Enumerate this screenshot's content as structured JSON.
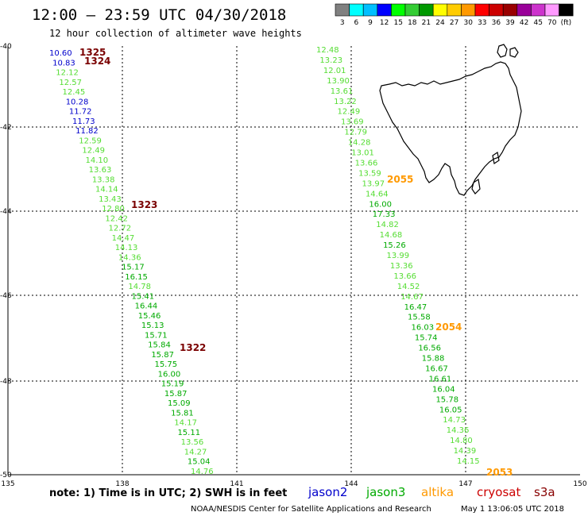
{
  "header": {
    "title": "12:00 — 23:59 UTC 04/30/2018",
    "subtitle": "12 hour collection of altimeter wave heights"
  },
  "legend": {
    "values": [
      "3",
      "6",
      "9",
      "12",
      "15",
      "18",
      "21",
      "24",
      "27",
      "30",
      "33",
      "36",
      "39",
      "42",
      "45",
      "70",
      "(ft)"
    ],
    "colors": [
      "#808080",
      "#00ffff",
      "#00bfff",
      "#0000ff",
      "#00ff00",
      "#33cc33",
      "#009900",
      "#ffff00",
      "#ffcc00",
      "#ff9900",
      "#ff0000",
      "#cc0000",
      "#990000",
      "#990099",
      "#cc33cc",
      "#ff99ff",
      "#000000"
    ]
  },
  "axes": {
    "lon_ticks": [
      "135",
      "138",
      "141",
      "144",
      "147",
      "150"
    ],
    "lat_ticks": [
      "-40",
      "-42",
      "-44",
      "-46",
      "-48",
      "-50"
    ]
  },
  "colors": {
    "jason2": "#0000cc",
    "jason3": "#00aa00",
    "light_green": "#55dd33",
    "altika": "#ff9900",
    "cryosat": "#cc0000",
    "s3a": "#880000",
    "time_dark": "#7a0000",
    "time_orange": "#ff9900"
  },
  "track_west": {
    "labels": [
      {
        "v": "10.60",
        "c": "jason2"
      },
      {
        "v": "10.83",
        "c": "jason2"
      },
      {
        "v": "12.12",
        "c": "light_green"
      },
      {
        "v": "12.57",
        "c": "light_green"
      },
      {
        "v": "12.45",
        "c": "light_green"
      },
      {
        "v": "10.28",
        "c": "jason2"
      },
      {
        "v": "11.72",
        "c": "jason2"
      },
      {
        "v": "11.73",
        "c": "jason2"
      },
      {
        "v": "11.82",
        "c": "jason2"
      },
      {
        "v": "12.59",
        "c": "light_green"
      },
      {
        "v": "12.49",
        "c": "light_green"
      },
      {
        "v": "14.10",
        "c": "light_green"
      },
      {
        "v": "13.63",
        "c": "light_green"
      },
      {
        "v": "13.38",
        "c": "light_green"
      },
      {
        "v": "14.14",
        "c": "light_green"
      },
      {
        "v": "13.43",
        "c": "light_green"
      },
      {
        "v": "12.80",
        "c": "light_green"
      },
      {
        "v": "12.42",
        "c": "light_green"
      },
      {
        "v": "12.72",
        "c": "light_green"
      },
      {
        "v": "14.47",
        "c": "light_green"
      },
      {
        "v": "14.13",
        "c": "light_green"
      },
      {
        "v": "14.36",
        "c": "light_green"
      },
      {
        "v": "15.17",
        "c": "jason3"
      },
      {
        "v": "16.15",
        "c": "jason3"
      },
      {
        "v": "14.78",
        "c": "light_green"
      },
      {
        "v": "15.41",
        "c": "jason3"
      },
      {
        "v": "16.44",
        "c": "jason3"
      },
      {
        "v": "15.46",
        "c": "jason3"
      },
      {
        "v": "15.13",
        "c": "jason3"
      },
      {
        "v": "15.71",
        "c": "jason3"
      },
      {
        "v": "15.84",
        "c": "jason3"
      },
      {
        "v": "15.87",
        "c": "jason3"
      },
      {
        "v": "15.75",
        "c": "jason3"
      },
      {
        "v": "16.00",
        "c": "jason3"
      },
      {
        "v": "15.19",
        "c": "jason3"
      },
      {
        "v": "15.87",
        "c": "jason3"
      },
      {
        "v": "15.09",
        "c": "jason3"
      },
      {
        "v": "15.81",
        "c": "jason3"
      },
      {
        "v": "14.17",
        "c": "light_green"
      },
      {
        "v": "15.11",
        "c": "jason3"
      },
      {
        "v": "13.56",
        "c": "light_green"
      },
      {
        "v": "14.27",
        "c": "light_green"
      },
      {
        "v": "15.04",
        "c": "jason3"
      },
      {
        "v": "14.76",
        "c": "light_green"
      }
    ],
    "times": [
      {
        "t": "1325",
        "c": "time_dark"
      },
      {
        "t": "1324",
        "c": "time_dark"
      },
      {
        "t": "1323",
        "c": "time_dark"
      },
      {
        "t": "1322",
        "c": "time_dark"
      }
    ]
  },
  "track_east": {
    "labels": [
      {
        "v": "12.48",
        "c": "light_green"
      },
      {
        "v": "13.23",
        "c": "light_green"
      },
      {
        "v": "12.01",
        "c": "light_green"
      },
      {
        "v": "13.90",
        "c": "light_green"
      },
      {
        "v": "13.61",
        "c": "light_green"
      },
      {
        "v": "13.22",
        "c": "light_green"
      },
      {
        "v": "12.49",
        "c": "light_green"
      },
      {
        "v": "13.69",
        "c": "light_green"
      },
      {
        "v": "12.79",
        "c": "light_green"
      },
      {
        "v": "14.28",
        "c": "light_green"
      },
      {
        "v": "13.01",
        "c": "light_green"
      },
      {
        "v": "13.66",
        "c": "light_green"
      },
      {
        "v": "13.59",
        "c": "light_green"
      },
      {
        "v": "13.97",
        "c": "light_green"
      },
      {
        "v": "14.64",
        "c": "light_green"
      },
      {
        "v": "16.00",
        "c": "jason3"
      },
      {
        "v": "17.33",
        "c": "jason3"
      },
      {
        "v": "14.82",
        "c": "light_green"
      },
      {
        "v": "14.68",
        "c": "light_green"
      },
      {
        "v": "15.26",
        "c": "jason3"
      },
      {
        "v": "13.99",
        "c": "light_green"
      },
      {
        "v": "13.36",
        "c": "light_green"
      },
      {
        "v": "13.66",
        "c": "light_green"
      },
      {
        "v": "14.52",
        "c": "light_green"
      },
      {
        "v": "14.67",
        "c": "light_green"
      },
      {
        "v": "16.47",
        "c": "jason3"
      },
      {
        "v": "15.58",
        "c": "jason3"
      },
      {
        "v": "16.03",
        "c": "jason3"
      },
      {
        "v": "15.74",
        "c": "jason3"
      },
      {
        "v": "16.56",
        "c": "jason3"
      },
      {
        "v": "15.88",
        "c": "jason3"
      },
      {
        "v": "16.67",
        "c": "jason3"
      },
      {
        "v": "16.61",
        "c": "jason3"
      },
      {
        "v": "16.04",
        "c": "jason3"
      },
      {
        "v": "15.78",
        "c": "jason3"
      },
      {
        "v": "16.05",
        "c": "jason3"
      },
      {
        "v": "14.73",
        "c": "light_green"
      },
      {
        "v": "14.36",
        "c": "light_green"
      },
      {
        "v": "14.80",
        "c": "light_green"
      },
      {
        "v": "14.39",
        "c": "light_green"
      },
      {
        "v": "14.15",
        "c": "light_green"
      }
    ],
    "times": [
      {
        "t": "2055",
        "c": "time_orange"
      },
      {
        "t": "2054",
        "c": "time_orange"
      },
      {
        "t": "2053",
        "c": "time_orange"
      }
    ]
  },
  "footer": {
    "note": "note:  1) Time is in UTC;  2) SWH is in feet",
    "satellites": [
      {
        "name": "jason2",
        "color": "jason2"
      },
      {
        "name": "jason3",
        "color": "jason3"
      },
      {
        "name": "altika",
        "color": "altika"
      },
      {
        "name": "cryosat",
        "color": "cryosat"
      },
      {
        "name": "s3a",
        "color": "s3a"
      }
    ],
    "credit": "NOAA/NESDIS Center for Satellite Applications and Research",
    "timestamp": "May  1 13:06:05 UTC 2018"
  }
}
